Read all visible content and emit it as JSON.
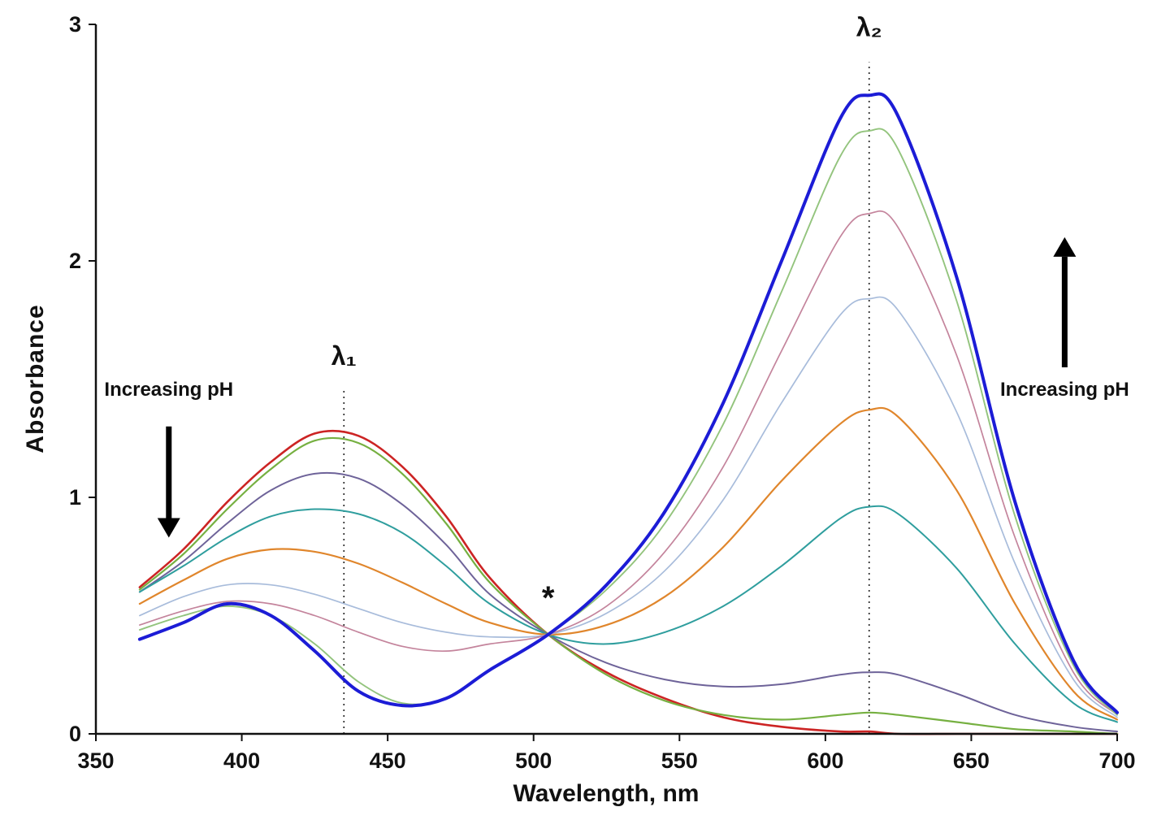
{
  "chart_data": {
    "type": "line",
    "title": "",
    "xlabel": "Wavelength, nm",
    "ylabel": "Absorbance",
    "xlim": [
      350,
      700
    ],
    "ylim": [
      0,
      3
    ],
    "x_ticks": [
      350,
      400,
      450,
      500,
      550,
      600,
      650,
      700
    ],
    "y_ticks": [
      0,
      1,
      2,
      3
    ],
    "grid": false,
    "legend": "none",
    "x": [
      365,
      380,
      395,
      410,
      425,
      440,
      455,
      470,
      485,
      505,
      525,
      545,
      565,
      585,
      605,
      615,
      625,
      645,
      665,
      685,
      700
    ],
    "series": [
      {
        "name": "curve-1",
        "color": "#cc2424",
        "width": 2.6,
        "values": [
          0.62,
          0.78,
          0.98,
          1.15,
          1.27,
          1.26,
          1.13,
          0.92,
          0.66,
          0.42,
          0.26,
          0.15,
          0.07,
          0.03,
          0.01,
          0.01,
          0.0,
          0.0,
          0.0,
          0.0,
          0.0
        ]
      },
      {
        "name": "curve-2",
        "color": "#76b041",
        "width": 2.2,
        "values": [
          0.61,
          0.76,
          0.95,
          1.12,
          1.24,
          1.23,
          1.1,
          0.89,
          0.64,
          0.42,
          0.25,
          0.14,
          0.08,
          0.06,
          0.08,
          0.09,
          0.08,
          0.05,
          0.02,
          0.01,
          0.0
        ]
      },
      {
        "name": "curve-3",
        "color": "#6e6399",
        "width": 2.0,
        "values": [
          0.6,
          0.73,
          0.89,
          1.03,
          1.1,
          1.08,
          0.97,
          0.8,
          0.59,
          0.42,
          0.3,
          0.23,
          0.2,
          0.21,
          0.25,
          0.26,
          0.25,
          0.17,
          0.08,
          0.03,
          0.01
        ]
      },
      {
        "name": "curve-4",
        "color": "#2f9e9e",
        "width": 2.0,
        "values": [
          0.6,
          0.71,
          0.83,
          0.92,
          0.95,
          0.93,
          0.85,
          0.71,
          0.55,
          0.42,
          0.38,
          0.43,
          0.54,
          0.71,
          0.91,
          0.96,
          0.93,
          0.7,
          0.38,
          0.13,
          0.05
        ]
      },
      {
        "name": "curve-5",
        "color": "#e0862c",
        "width": 2.2,
        "values": [
          0.55,
          0.65,
          0.74,
          0.78,
          0.77,
          0.72,
          0.64,
          0.55,
          0.47,
          0.42,
          0.46,
          0.58,
          0.79,
          1.07,
          1.31,
          1.37,
          1.34,
          1.03,
          0.55,
          0.18,
          0.06
        ]
      },
      {
        "name": "curve-6",
        "color": "#a8bcdb",
        "width": 1.7,
        "values": [
          0.5,
          0.58,
          0.63,
          0.63,
          0.59,
          0.53,
          0.47,
          0.43,
          0.41,
          0.42,
          0.51,
          0.69,
          0.99,
          1.4,
          1.77,
          1.84,
          1.79,
          1.36,
          0.72,
          0.23,
          0.07
        ]
      },
      {
        "name": "curve-7",
        "color": "#c4849c",
        "width": 1.7,
        "values": [
          0.46,
          0.52,
          0.56,
          0.55,
          0.5,
          0.43,
          0.37,
          0.35,
          0.38,
          0.42,
          0.54,
          0.77,
          1.13,
          1.62,
          2.1,
          2.2,
          2.14,
          1.6,
          0.83,
          0.26,
          0.08
        ]
      },
      {
        "name": "curve-8",
        "color": "#93c47d",
        "width": 1.9,
        "values": [
          0.44,
          0.5,
          0.54,
          0.5,
          0.38,
          0.22,
          0.13,
          0.15,
          0.27,
          0.42,
          0.61,
          0.89,
          1.31,
          1.87,
          2.44,
          2.55,
          2.47,
          1.83,
          0.92,
          0.29,
          0.08
        ]
      },
      {
        "name": "curve-9",
        "color": "#1c1cd6",
        "width": 4.0,
        "values": [
          0.4,
          0.47,
          0.55,
          0.5,
          0.35,
          0.18,
          0.12,
          0.15,
          0.27,
          0.42,
          0.63,
          0.94,
          1.4,
          2.0,
          2.6,
          2.7,
          2.61,
          1.93,
          0.98,
          0.31,
          0.09
        ]
      }
    ],
    "annotations": {
      "lambda1": {
        "label": "λ₁",
        "x": 435,
        "line_top": 1.45,
        "label_y": 1.56
      },
      "lambda2": {
        "label": "λ₂",
        "x": 615,
        "line_top": 2.84,
        "label_y": 2.95
      },
      "isosbestic": {
        "label": "*",
        "x": 505,
        "y": 0.42,
        "label_y": 0.53
      },
      "left_arrow": {
        "text": "Increasing pH",
        "x": 375,
        "text_y": 1.43,
        "from": 1.3,
        "to": 0.83,
        "direction": "down"
      },
      "right_arrow": {
        "text": "Increasing pH",
        "x": 682,
        "text_y": 1.43,
        "from": 1.55,
        "to": 2.1,
        "direction": "up"
      }
    }
  }
}
